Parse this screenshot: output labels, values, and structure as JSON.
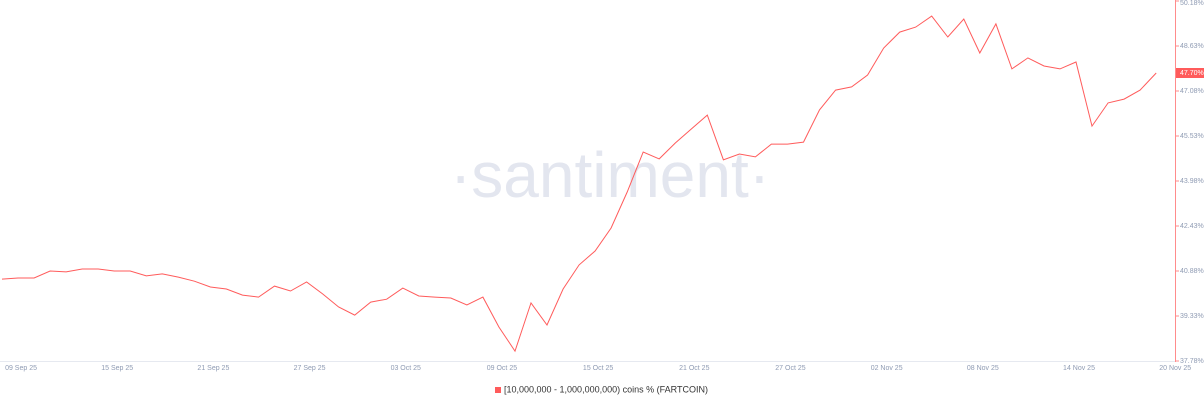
{
  "chart_data": {
    "type": "line",
    "watermark": "·santiment·",
    "categories": [
      null,
      "09 Sep 25",
      null,
      null,
      null,
      null,
      null,
      "15 Sep 25",
      null,
      null,
      null,
      null,
      null,
      "21 Sep 25",
      null,
      null,
      null,
      null,
      null,
      "27 Sep 25",
      null,
      null,
      null,
      null,
      null,
      "03 Oct 25",
      null,
      null,
      null,
      null,
      null,
      "09 Oct 25",
      null,
      null,
      null,
      null,
      null,
      "15 Oct 25",
      null,
      null,
      null,
      null,
      null,
      "21 Oct 25",
      null,
      null,
      null,
      null,
      null,
      "27 Oct 25",
      null,
      null,
      null,
      null,
      null,
      "02 Nov 25",
      null,
      null,
      null,
      null,
      null,
      "08 Nov 25",
      null,
      null,
      null,
      null,
      null,
      "14 Nov 25",
      null,
      null,
      null,
      null,
      null,
      "20 Nov 25"
    ],
    "series": [
      {
        "name": "[10,000,000 - 1,000,000,000) coins % (FARTCOIN)",
        "color": "#ff5b5b",
        "values": [
          40.6,
          40.64,
          40.64,
          40.88,
          40.85,
          40.95,
          40.95,
          40.88,
          40.88,
          40.71,
          40.78,
          40.67,
          40.53,
          40.33,
          40.26,
          40.05,
          39.98,
          40.36,
          40.19,
          40.5,
          40.09,
          39.64,
          39.36,
          39.81,
          39.91,
          40.29,
          40.02,
          39.98,
          39.95,
          39.71,
          39.98,
          38.95,
          38.12,
          39.78,
          39.02,
          40.26,
          41.09,
          41.57,
          42.36,
          43.6,
          44.98,
          44.74,
          45.29,
          45.77,
          46.25,
          44.71,
          44.91,
          44.81,
          45.25,
          45.25,
          45.32,
          46.43,
          47.11,
          47.22,
          47.63,
          48.56,
          49.11,
          49.28,
          49.66,
          48.94,
          49.56,
          48.39,
          49.39,
          47.84,
          48.22,
          47.94,
          47.84,
          48.08,
          45.87,
          46.67,
          46.8,
          47.11,
          47.7,
          null
        ]
      }
    ],
    "current": {
      "value": 47.7,
      "label": "47.70%"
    },
    "ylim": [
      37.78,
      50.18
    ],
    "yticks": [
      {
        "value": 37.78,
        "label": "37.78%"
      },
      {
        "value": 39.33,
        "label": "39.33%"
      },
      {
        "value": 40.88,
        "label": "40.88%"
      },
      {
        "value": 42.43,
        "label": "42.43%"
      },
      {
        "value": 43.98,
        "label": "43.98%"
      },
      {
        "value": 45.53,
        "label": "45.53%"
      },
      {
        "value": 47.08,
        "label": "47.08%"
      },
      {
        "value": 48.63,
        "label": "48.63%"
      },
      {
        "value": 50.18,
        "label": "50.18%"
      }
    ],
    "grid": false
  }
}
